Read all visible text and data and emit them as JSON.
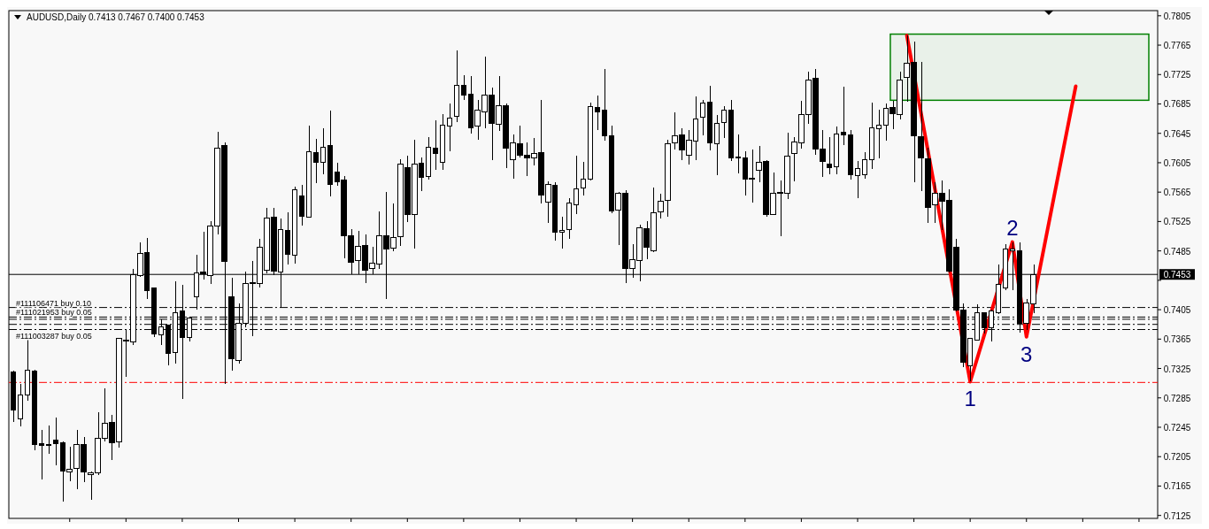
{
  "chart_data": {
    "type": "candlestick",
    "title": "AUDUSD,Daily  0.7413 0.7467 0.7400 0.7453",
    "categories": [
      null,
      null,
      null,
      null,
      null,
      null,
      null,
      null,
      null,
      null,
      null,
      null,
      null,
      null,
      null,
      null,
      null,
      null,
      null,
      null,
      null,
      null,
      null,
      null,
      null,
      null,
      null,
      null,
      null,
      null,
      null,
      null,
      null,
      null,
      null,
      null,
      null,
      null,
      null,
      null,
      null,
      null,
      null,
      null,
      null,
      null,
      null,
      null,
      null,
      null,
      null,
      null,
      null,
      null,
      null,
      null,
      null,
      null,
      null,
      null,
      null,
      null,
      null,
      null,
      null,
      null,
      null,
      null,
      null,
      null,
      null,
      null,
      null,
      null,
      null,
      null,
      null,
      null,
      null,
      null,
      null,
      null,
      null,
      null,
      null,
      null,
      null,
      null,
      null,
      null,
      null,
      null,
      null,
      null,
      null,
      null,
      null,
      null,
      null,
      null,
      null,
      null,
      null,
      null,
      null,
      null,
      null,
      null,
      null,
      null,
      null,
      null,
      null,
      null,
      null,
      null,
      null,
      null,
      null,
      null,
      null,
      null,
      null,
      null,
      null,
      null,
      null,
      null,
      null,
      null,
      null,
      null,
      null,
      null,
      null,
      null,
      null,
      null,
      null,
      null,
      null,
      null,
      null,
      null,
      null,
      null,
      null,
      null,
      null,
      null,
      null,
      null,
      null,
      null,
      null,
      null,
      null,
      null,
      null,
      null,
      null,
      null,
      null
    ],
    "series": [
      {
        "color": "#000000",
        "ohlc": [
          [
            0.732,
            0.7322,
            0.7252,
            0.7268
          ],
          [
            0.7257,
            0.7304,
            0.7246,
            0.7289
          ],
          [
            0.7289,
            0.7365,
            0.7281,
            0.7323
          ],
          [
            0.7322,
            0.7323,
            0.7214,
            0.7221
          ],
          [
            0.7223,
            0.7241,
            0.7174,
            0.722
          ],
          [
            0.7221,
            0.7247,
            0.7209,
            0.7222
          ],
          [
            0.7227,
            0.7258,
            0.7193,
            0.7223
          ],
          [
            0.7224,
            0.7226,
            0.7144,
            0.7186
          ],
          [
            0.7184,
            0.7218,
            0.7172,
            0.7188
          ],
          [
            0.7189,
            0.7241,
            0.7161,
            0.7222
          ],
          [
            0.7221,
            0.7232,
            0.717,
            0.7184
          ],
          [
            0.718,
            0.7185,
            0.7146,
            0.7183
          ],
          [
            0.7183,
            0.7266,
            0.718,
            0.723
          ],
          [
            0.723,
            0.7298,
            0.7226,
            0.725
          ],
          [
            0.7252,
            0.7262,
            0.7201,
            0.7224
          ],
          [
            0.7225,
            0.7367,
            0.7217,
            0.7366
          ],
          [
            0.7363,
            0.7378,
            0.7314,
            0.7362
          ],
          [
            0.7361,
            0.7461,
            0.7357,
            0.7453
          ],
          [
            0.7452,
            0.7497,
            0.745,
            0.7482
          ],
          [
            0.7483,
            0.7503,
            0.7419,
            0.7431
          ],
          [
            0.7434,
            0.7435,
            0.7368,
            0.7372
          ],
          [
            0.7371,
            0.7392,
            0.7357,
            0.7382
          ],
          [
            0.7384,
            0.7385,
            0.7329,
            0.7346
          ],
          [
            0.7347,
            0.7444,
            0.7332,
            0.7401
          ],
          [
            0.7403,
            0.7439,
            0.7283,
            0.7367
          ],
          [
            0.7367,
            0.7396,
            0.7362,
            0.7394
          ],
          [
            0.7423,
            0.748,
            0.7405,
            0.7455
          ],
          [
            0.7456,
            0.7511,
            0.7446,
            0.7454
          ],
          [
            0.7452,
            0.7525,
            0.744,
            0.7519
          ],
          [
            0.7519,
            0.7647,
            0.7508,
            0.7625
          ],
          [
            0.7629,
            0.7633,
            0.7304,
            0.7471
          ],
          [
            0.7422,
            0.7449,
            0.7322,
            0.7338
          ],
          [
            0.7336,
            0.7413,
            0.7332,
            0.7387
          ],
          [
            0.7387,
            0.7457,
            0.7381,
            0.7441
          ],
          [
            0.7442,
            0.7471,
            0.7369,
            0.7441
          ],
          [
            0.7441,
            0.7502,
            0.7435,
            0.749
          ],
          [
            0.7459,
            0.7543,
            0.7455,
            0.753
          ],
          [
            0.7531,
            0.7543,
            0.7452,
            0.7457
          ],
          [
            0.7456,
            0.7529,
            0.7408,
            0.7514
          ],
          [
            0.7513,
            0.7537,
            0.7466,
            0.748
          ],
          [
            0.7479,
            0.7572,
            0.7468,
            0.7568
          ],
          [
            0.756,
            0.7575,
            0.752,
            0.7532
          ],
          [
            0.7531,
            0.7656,
            0.753,
            0.762
          ],
          [
            0.7619,
            0.7637,
            0.7577,
            0.7605
          ],
          [
            0.7606,
            0.7652,
            0.7589,
            0.7626
          ],
          [
            0.7628,
            0.7676,
            0.7559,
            0.7575
          ],
          [
            0.7592,
            0.7605,
            0.7574,
            0.7579
          ],
          [
            0.7581,
            0.7587,
            0.7475,
            0.7506
          ],
          [
            0.7506,
            0.7515,
            0.7453,
            0.747
          ],
          [
            0.7472,
            0.7512,
            0.7453,
            0.7491
          ],
          [
            0.7492,
            0.7507,
            0.7441,
            0.7459
          ],
          [
            0.7461,
            0.7491,
            0.7453,
            0.7468
          ],
          [
            0.7467,
            0.7539,
            0.7461,
            0.7506
          ],
          [
            0.7506,
            0.7565,
            0.742,
            0.7488
          ],
          [
            0.7489,
            0.7549,
            0.7484,
            0.7503
          ],
          [
            0.7504,
            0.761,
            0.7492,
            0.7603
          ],
          [
            0.7598,
            0.7614,
            0.7524,
            0.7534
          ],
          [
            0.7535,
            0.7636,
            0.7488,
            0.7603
          ],
          [
            0.7604,
            0.7612,
            0.7567,
            0.7585
          ],
          [
            0.7586,
            0.764,
            0.7582,
            0.7626
          ],
          [
            0.7625,
            0.7663,
            0.7595,
            0.7618
          ],
          [
            0.7605,
            0.7671,
            0.7595,
            0.7656
          ],
          [
            0.7655,
            0.7685,
            0.7621,
            0.7666
          ],
          [
            0.7668,
            0.7758,
            0.766,
            0.771
          ],
          [
            0.771,
            0.7724,
            0.769,
            0.7697
          ],
          [
            0.7698,
            0.7723,
            0.7645,
            0.7652
          ],
          [
            0.7655,
            0.769,
            0.7636,
            0.7676
          ],
          [
            0.7674,
            0.7749,
            0.7652,
            0.7697
          ],
          [
            0.7697,
            0.7707,
            0.7609,
            0.7658
          ],
          [
            0.7657,
            0.7723,
            0.7648,
            0.7683
          ],
          [
            0.7683,
            0.7686,
            0.7598,
            0.7625
          ],
          [
            0.7609,
            0.7643,
            0.7583,
            0.7632
          ],
          [
            0.7631,
            0.7655,
            0.7612,
            0.7615
          ],
          [
            0.7615,
            0.7633,
            0.7587,
            0.7611
          ],
          [
            0.7612,
            0.7639,
            0.7601,
            0.7617
          ],
          [
            0.7619,
            0.7691,
            0.7549,
            0.7561
          ],
          [
            0.7551,
            0.758,
            0.7523,
            0.7575
          ],
          [
            0.7574,
            0.7578,
            0.7499,
            0.7511
          ],
          [
            0.751,
            0.7532,
            0.7488,
            0.7513
          ],
          [
            0.7514,
            0.7557,
            0.7502,
            0.755
          ],
          [
            0.7548,
            0.7615,
            0.7535,
            0.757
          ],
          [
            0.7571,
            0.7606,
            0.7561,
            0.7583
          ],
          [
            0.7583,
            0.7687,
            0.7581,
            0.7681
          ],
          [
            0.768,
            0.7697,
            0.7649,
            0.7674
          ],
          [
            0.7676,
            0.7732,
            0.7635,
            0.7642
          ],
          [
            0.7642,
            0.7656,
            0.7536,
            0.7539
          ],
          [
            0.754,
            0.7565,
            0.7493,
            0.7563
          ],
          [
            0.7563,
            0.7568,
            0.7441,
            0.7461
          ],
          [
            0.7461,
            0.7494,
            0.7449,
            0.7473
          ],
          [
            0.7472,
            0.7521,
            0.7444,
            0.7517
          ],
          [
            0.7515,
            0.7525,
            0.7474,
            0.749
          ],
          [
            0.7485,
            0.7571,
            0.7483,
            0.7537
          ],
          [
            0.7538,
            0.7563,
            0.7529,
            0.7552
          ],
          [
            0.7554,
            0.7636,
            0.7532,
            0.7631
          ],
          [
            0.7632,
            0.7673,
            0.7623,
            0.7642
          ],
          [
            0.7643,
            0.7652,
            0.7608,
            0.7622
          ],
          [
            0.7615,
            0.7649,
            0.7602,
            0.7636
          ],
          [
            0.7634,
            0.7695,
            0.7609,
            0.7665
          ],
          [
            0.7667,
            0.7691,
            0.7642,
            0.7686
          ],
          [
            0.7687,
            0.771,
            0.7622,
            0.7632
          ],
          [
            0.7631,
            0.767,
            0.7588,
            0.7659
          ],
          [
            0.766,
            0.7682,
            0.7639,
            0.7677
          ],
          [
            0.7677,
            0.769,
            0.7607,
            0.7612
          ],
          [
            0.7613,
            0.7643,
            0.7591,
            0.7611
          ],
          [
            0.7612,
            0.7621,
            0.7561,
            0.7583
          ],
          [
            0.7584,
            0.7623,
            0.7551,
            0.7583
          ],
          [
            0.7595,
            0.7628,
            0.7579,
            0.7606
          ],
          [
            0.7607,
            0.7608,
            0.7532,
            0.7535
          ],
          [
            0.7535,
            0.7592,
            0.7535,
            0.7564
          ],
          [
            0.7564,
            0.7581,
            0.7505,
            0.7565
          ],
          [
            0.7563,
            0.7646,
            0.7556,
            0.7614
          ],
          [
            0.7617,
            0.764,
            0.758,
            0.7633
          ],
          [
            0.7632,
            0.7689,
            0.7624,
            0.7671
          ],
          [
            0.767,
            0.7729,
            0.7658,
            0.7718
          ],
          [
            0.772,
            0.7733,
            0.7616,
            0.7624
          ],
          [
            0.7624,
            0.765,
            0.7586,
            0.7607
          ],
          [
            0.7603,
            0.764,
            0.7589,
            0.7598
          ],
          [
            0.7599,
            0.7654,
            0.7589,
            0.7644
          ],
          [
            0.7646,
            0.7708,
            0.7629,
            0.7643
          ],
          [
            0.7643,
            0.765,
            0.7582,
            0.7589
          ],
          [
            0.7587,
            0.7607,
            0.7557,
            0.7597
          ],
          [
            0.7589,
            0.7619,
            0.7583,
            0.7609
          ],
          [
            0.7609,
            0.7687,
            0.7596,
            0.7652
          ],
          [
            0.7651,
            0.7677,
            0.7611,
            0.7656
          ],
          [
            0.7656,
            0.7685,
            0.7635,
            0.7679
          ],
          [
            0.768,
            0.7689,
            0.7651,
            0.7672
          ],
          [
            0.767,
            0.7729,
            0.7664,
            0.7718
          ],
          [
            0.7721,
            0.7778,
            0.7688,
            0.774
          ],
          [
            0.7742,
            0.777,
            0.7579,
            0.7642
          ],
          [
            0.764,
            0.7742,
            0.7566,
            0.7611
          ],
          [
            0.761,
            0.7625,
            0.7523,
            0.7544
          ],
          [
            0.7548,
            0.7579,
            0.7523,
            0.7563
          ],
          [
            0.7563,
            0.7581,
            0.7514,
            0.7553
          ],
          [
            0.7554,
            0.7569,
            0.7456,
            0.7457
          ],
          [
            0.749,
            0.7501,
            0.7403,
            0.7405
          ],
          [
            0.7404,
            0.7414,
            0.7327,
            0.7333
          ],
          [
            0.7329,
            0.7367,
            0.7307,
            0.7366
          ],
          [
            0.7364,
            0.7412,
            0.7363,
            0.7401
          ],
          [
            0.7401,
            0.7402,
            0.7372,
            0.7381
          ],
          [
            0.7381,
            0.7405,
            0.7362,
            0.7403
          ],
          [
            0.7401,
            0.7467,
            0.7399,
            0.744
          ],
          [
            0.7435,
            0.7494,
            0.7431,
            0.7487
          ],
          [
            0.7485,
            0.7497,
            0.7432,
            0.7487
          ],
          [
            0.7485,
            0.7496,
            0.7374,
            0.7387
          ],
          [
            0.7386,
            0.742,
            0.7378,
            0.7414
          ],
          [
            0.7413,
            0.7467,
            0.74,
            0.7453
          ],
          null,
          null,
          null,
          null,
          null,
          null,
          null,
          null,
          null,
          null,
          null,
          null,
          null,
          null,
          null,
          null,
          null
        ]
      },
      {
        "type": "line",
        "color": "#ff0000",
        "values": [
          null,
          null,
          null,
          null,
          null,
          null,
          null,
          null,
          null,
          null,
          null,
          null,
          null,
          null,
          null,
          null,
          null,
          null,
          null,
          null,
          null,
          null,
          null,
          null,
          null,
          null,
          null,
          null,
          null,
          null,
          null,
          null,
          null,
          null,
          null,
          null,
          null,
          null,
          null,
          null,
          null,
          null,
          null,
          null,
          null,
          null,
          null,
          null,
          null,
          null,
          null,
          null,
          null,
          null,
          null,
          null,
          null,
          null,
          null,
          null,
          null,
          null,
          null,
          null,
          null,
          null,
          null,
          null,
          null,
          null,
          null,
          null,
          null,
          null,
          null,
          null,
          null,
          null,
          null,
          null,
          null,
          null,
          null,
          null,
          null,
          null,
          null,
          null,
          null,
          null,
          null,
          null,
          null,
          null,
          null,
          null,
          null,
          null,
          null,
          null,
          null,
          null,
          null,
          null,
          null,
          null,
          null,
          null,
          null,
          null,
          null,
          null,
          null,
          null,
          null,
          null,
          null,
          null,
          null,
          null,
          null,
          null,
          null,
          null,
          null,
          null,
          null,
          0.7778,
          null,
          null,
          null,
          null,
          null,
          null,
          null,
          null,
          0.7307,
          null,
          null,
          null,
          null,
          null,
          0.7497,
          null,
          0.7368,
          null,
          null,
          null,
          null,
          null,
          null,
          0.7709,
          null,
          null,
          null,
          null,
          null,
          null,
          null,
          null,
          null,
          null,
          null
        ]
      }
    ],
    "ylim": [
      0.7121,
      0.7812
    ],
    "yticks": [
      0.7805,
      0.7765,
      0.7725,
      0.7685,
      0.7645,
      0.7605,
      0.7565,
      0.7525,
      0.7485,
      {
        "value": 0.7445,
        "label": null
      },
      0.7405,
      0.7365,
      0.7325,
      0.7285,
      0.7245,
      0.7205,
      0.7165,
      0.7125
    ],
    "tick_labels": "y",
    "ref_lines": [
      {
        "axis": "y",
        "value": 0.7453,
        "label": "0.7453",
        "color": "#000000",
        "line_style": "solid"
      },
      {
        "axis": "y",
        "value": 0.7408,
        "label": "#111106471 buy 0.10",
        "color": "#000000",
        "line_style": "dashed"
      },
      {
        "axis": "y",
        "value": 0.7395,
        "label": "#111021953 buy 0.05",
        "color": "#000000",
        "line_style": "dashed"
      },
      {
        "axis": "y",
        "value": 0.7392,
        "label": null,
        "color": "#000000",
        "line_style": "dashed"
      },
      {
        "axis": "y",
        "value": 0.7385,
        "label": null,
        "color": "#000000",
        "line_style": "dashed"
      },
      {
        "axis": "y",
        "value": 0.7378,
        "label": "#111003287 buy 0.05",
        "color": "#000000",
        "line_style": "dashed"
      },
      {
        "axis": "y",
        "value": 0.7306,
        "label": null,
        "color": "#ff0000",
        "line_style": "dashed"
      }
    ],
    "bands": [
      {
        "axis": "y",
        "from": 0.769,
        "to": 0.778,
        "color": "#008000"
      }
    ],
    "annotations": [
      "1",
      "2",
      "3"
    ]
  }
}
